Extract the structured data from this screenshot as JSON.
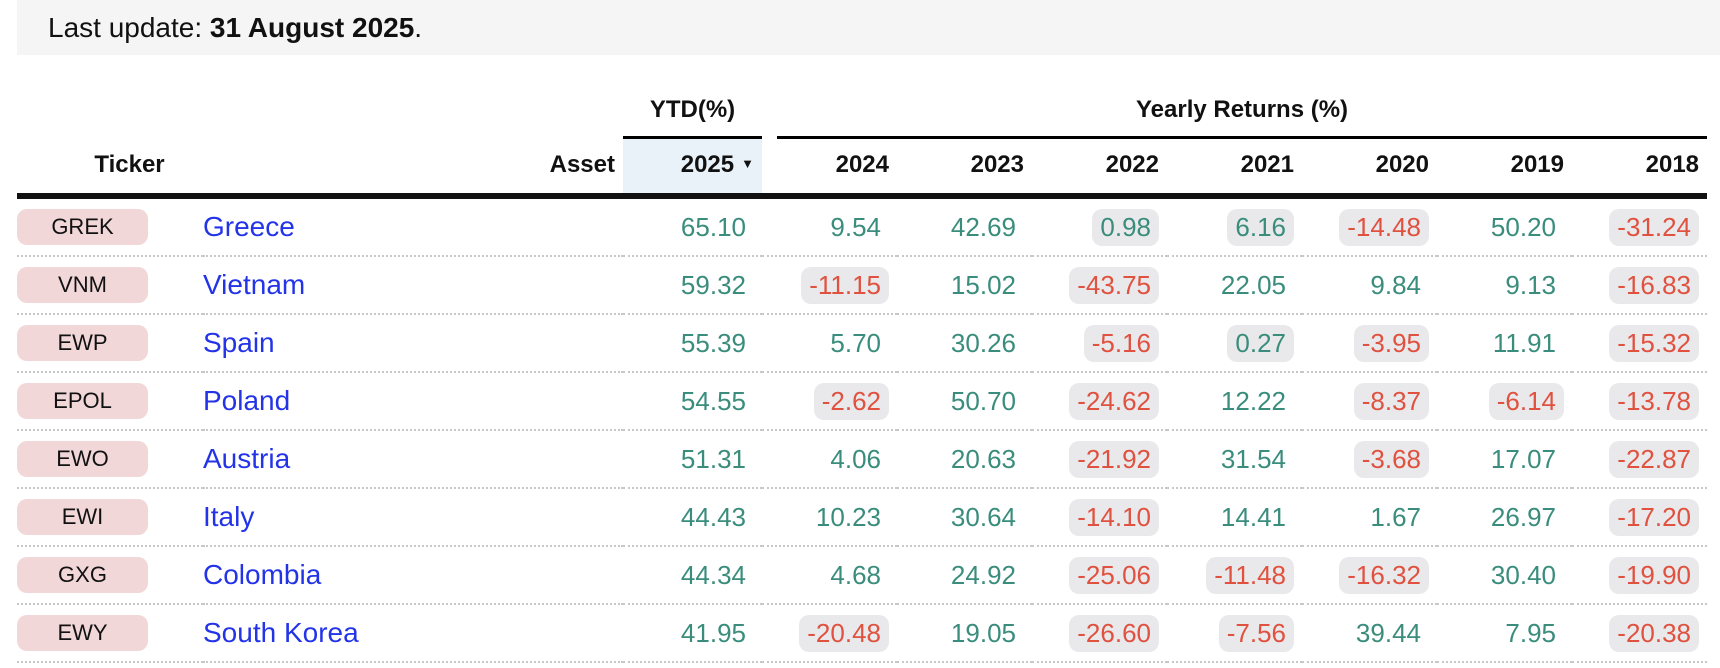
{
  "topbar": {
    "label": "Last update: ",
    "date": "31 August 2025",
    "suffix": "."
  },
  "table": {
    "groups": {
      "ytd": "YTD(%)",
      "yearly": "Yearly Returns (%)"
    },
    "headers": {
      "ticker": "Ticker",
      "asset": "Asset",
      "ytd_year": "2025",
      "sort_icon": "▼",
      "years": [
        "2024",
        "2023",
        "2022",
        "2021",
        "2020",
        "2019",
        "2018"
      ]
    },
    "rows": [
      {
        "ticker": "GREK",
        "asset": "Greece",
        "returns": [
          "65.10",
          "9.54",
          "42.69",
          "0.98",
          "6.16",
          "-14.48",
          "50.20",
          "-31.24"
        ],
        "highlighted": [
          false,
          false,
          false,
          true,
          true,
          true,
          false,
          true
        ]
      },
      {
        "ticker": "VNM",
        "asset": "Vietnam",
        "returns": [
          "59.32",
          "-11.15",
          "15.02",
          "-43.75",
          "22.05",
          "9.84",
          "9.13",
          "-16.83"
        ],
        "highlighted": [
          false,
          true,
          false,
          true,
          false,
          false,
          false,
          true
        ]
      },
      {
        "ticker": "EWP",
        "asset": "Spain",
        "returns": [
          "55.39",
          "5.70",
          "30.26",
          "-5.16",
          "0.27",
          "-3.95",
          "11.91",
          "-15.32"
        ],
        "highlighted": [
          false,
          false,
          false,
          true,
          true,
          true,
          false,
          true
        ]
      },
      {
        "ticker": "EPOL",
        "asset": "Poland",
        "returns": [
          "54.55",
          "-2.62",
          "50.70",
          "-24.62",
          "12.22",
          "-8.37",
          "-6.14",
          "-13.78"
        ],
        "highlighted": [
          false,
          true,
          false,
          true,
          false,
          true,
          true,
          true
        ]
      },
      {
        "ticker": "EWO",
        "asset": "Austria",
        "returns": [
          "51.31",
          "4.06",
          "20.63",
          "-21.92",
          "31.54",
          "-3.68",
          "17.07",
          "-22.87"
        ],
        "highlighted": [
          false,
          false,
          false,
          true,
          false,
          true,
          false,
          true
        ]
      },
      {
        "ticker": "EWI",
        "asset": "Italy",
        "returns": [
          "44.43",
          "10.23",
          "30.64",
          "-14.10",
          "14.41",
          "1.67",
          "26.97",
          "-17.20"
        ],
        "highlighted": [
          false,
          false,
          false,
          true,
          false,
          false,
          false,
          true
        ]
      },
      {
        "ticker": "GXG",
        "asset": "Colombia",
        "returns": [
          "44.34",
          "4.68",
          "24.92",
          "-25.06",
          "-11.48",
          "-16.32",
          "30.40",
          "-19.90"
        ],
        "highlighted": [
          false,
          false,
          false,
          true,
          true,
          true,
          false,
          true
        ]
      },
      {
        "ticker": "EWY",
        "asset": "South Korea",
        "returns": [
          "41.95",
          "-20.48",
          "19.05",
          "-26.60",
          "-7.56",
          "39.44",
          "7.95",
          "-20.38"
        ],
        "highlighted": [
          false,
          true,
          false,
          true,
          true,
          false,
          false,
          true
        ]
      }
    ]
  },
  "colors": {
    "positive_text": "#3a8d7c",
    "negative_text": "#e0513f",
    "highlight_bg": "#e9e9eb",
    "ticker_badge_bg": "#f2d7d9",
    "asset_link": "#2333e8",
    "ytd_header_bg": "#eaf2f9",
    "topbar_bg": "#f5f5f6"
  }
}
